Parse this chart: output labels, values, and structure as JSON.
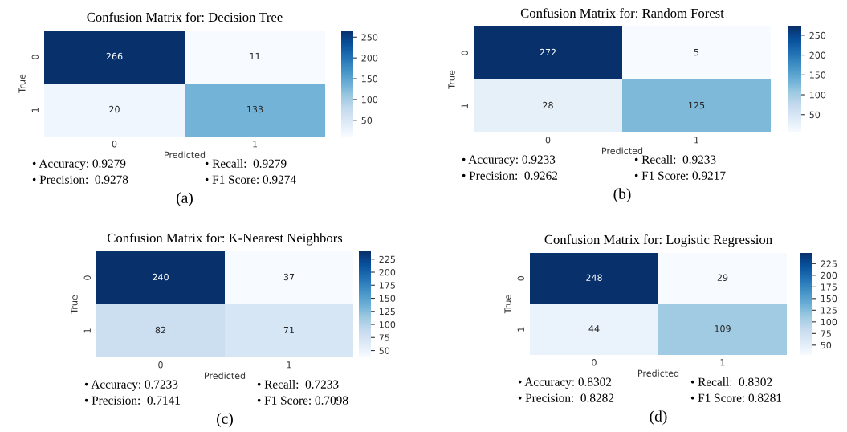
{
  "chart_data": [
    {
      "type": "heatmap",
      "title": "Confusion Matrix for: Decision Tree",
      "xlabel": "Predicted",
      "ylabel": "True",
      "categories": [
        "0",
        "1"
      ],
      "y_categories": [
        "0",
        "1"
      ],
      "cells": [
        [
          266,
          11
        ],
        [
          20,
          133
        ]
      ],
      "data_labels": true,
      "clim": [
        11,
        266
      ],
      "cticks": [
        50,
        100,
        150,
        200,
        250
      ],
      "annotations": [
        "• Accuracy: 0.9279",
        "• Recall:  0.9279",
        "• Precision:  0.9278",
        "• F1 Score: 0.9274",
        "(a)"
      ]
    },
    {
      "type": "heatmap",
      "title": "Confusion Matrix for: Random Forest",
      "xlabel": "Predicted",
      "ylabel": "True",
      "categories": [
        "0",
        "1"
      ],
      "y_categories": [
        "0",
        "1"
      ],
      "cells": [
        [
          272,
          5
        ],
        [
          28,
          125
        ]
      ],
      "data_labels": true,
      "clim": [
        5,
        272
      ],
      "cticks": [
        50,
        100,
        150,
        200,
        250
      ],
      "annotations": [
        "• Accuracy: 0.9233",
        "• Recall:  0.9233",
        "• Precision:  0.9262",
        "• F1 Score: 0.9217",
        "(b)"
      ]
    },
    {
      "type": "heatmap",
      "title": "Confusion Matrix for: K-Nearest Neighbors",
      "xlabel": "Predicted",
      "ylabel": "True",
      "categories": [
        "0",
        "1"
      ],
      "y_categories": [
        "0",
        "1"
      ],
      "cells": [
        [
          240,
          37
        ],
        [
          82,
          71
        ]
      ],
      "data_labels": true,
      "clim": [
        37,
        240
      ],
      "cticks": [
        50,
        75,
        100,
        125,
        150,
        175,
        200,
        225
      ],
      "annotations": [
        "• Accuracy: 0.7233",
        "• Recall:  0.7233",
        "• Precision:  0.7141",
        "• F1 Score: 0.7098",
        "(c)"
      ]
    },
    {
      "type": "heatmap",
      "title": "Confusion Matrix for: Logistic Regression",
      "xlabel": "Predicted",
      "ylabel": "True",
      "categories": [
        "0",
        "1"
      ],
      "y_categories": [
        "0",
        "1"
      ],
      "cells": [
        [
          248,
          29
        ],
        [
          44,
          109
        ]
      ],
      "data_labels": true,
      "clim": [
        29,
        248
      ],
      "cticks": [
        50,
        75,
        100,
        125,
        150,
        175,
        200,
        225
      ],
      "annotations": [
        "• Accuracy: 0.8302",
        "• Recall:  0.8302",
        "• Precision:  0.8282",
        "• F1 Score: 0.8281",
        "(d)"
      ]
    }
  ]
}
